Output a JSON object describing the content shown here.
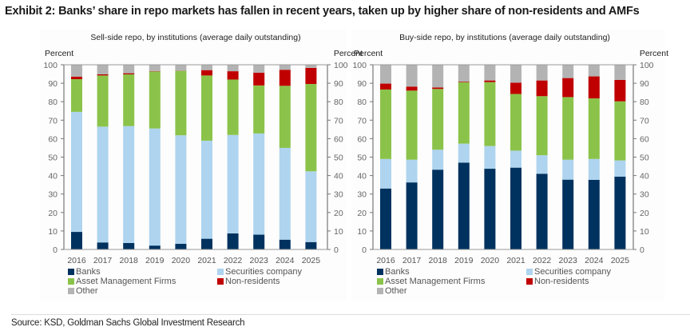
{
  "title": "Exhibit 2: Banks’ share in repo markets has fallen in recent years, taken up by higher share of non-residents and AMFs",
  "source": "Source: KSD, Goldman Sachs Global Investment Research",
  "colors": {
    "Banks": "#00325f",
    "Securities company": "#aed4ef",
    "Asset Management Firms": "#8bc34a",
    "Non-residents": "#c00000",
    "Other": "#b3b3b3"
  },
  "chart_data": [
    {
      "type": "bar",
      "stacked": true,
      "title": "Sell-side repo, by institutions (average daily outstanding)",
      "ylabel_left": "Percent",
      "ylabel_right": "Percent",
      "ylim": [
        0,
        100
      ],
      "yticks": [
        0,
        10,
        20,
        30,
        40,
        50,
        60,
        70,
        80,
        90,
        100
      ],
      "grid": false,
      "legend_position": "bottom",
      "categories": [
        "2016",
        "2017",
        "2018",
        "2019",
        "2020",
        "2021",
        "2022",
        "2023",
        "2024",
        "2025"
      ],
      "series": [
        {
          "name": "Banks",
          "values": [
            9.5,
            3.8,
            3.5,
            2.1,
            3.1,
            5.8,
            8.7,
            8.0,
            5.3,
            4.0
          ]
        },
        {
          "name": "Securities company",
          "values": [
            65.0,
            62.7,
            63.3,
            63.4,
            58.7,
            53.1,
            53.3,
            54.8,
            49.7,
            38.3
          ]
        },
        {
          "name": "Asset Management Firms",
          "values": [
            17.7,
            27.7,
            28.0,
            30.9,
            34.9,
            35.3,
            30.0,
            26.0,
            33.6,
            47.3
          ]
        },
        {
          "name": "Non-residents",
          "values": [
            1.4,
            0.6,
            0.6,
            0.2,
            0.1,
            2.9,
            4.5,
            6.9,
            8.7,
            8.7
          ]
        },
        {
          "name": "Other",
          "values": [
            6.4,
            5.2,
            4.6,
            3.4,
            3.2,
            2.9,
            3.5,
            4.3,
            2.7,
            1.7
          ]
        }
      ]
    },
    {
      "type": "bar",
      "stacked": true,
      "title": "Buy-side repo, by institutions (average daily outstanding)",
      "ylabel_left": "Percent",
      "ylabel_right": "Percent",
      "ylim": [
        0,
        100
      ],
      "yticks": [
        0,
        10,
        20,
        30,
        40,
        50,
        60,
        70,
        80,
        90,
        100
      ],
      "grid": false,
      "legend_position": "bottom",
      "categories": [
        "2016",
        "2017",
        "2018",
        "2019",
        "2020",
        "2021",
        "2022",
        "2023",
        "2024",
        "2025"
      ],
      "series": [
        {
          "name": "Banks",
          "values": [
            33.0,
            36.3,
            43.2,
            47.0,
            43.7,
            44.3,
            41.0,
            37.8,
            37.7,
            39.4
          ]
        },
        {
          "name": "Securities company",
          "values": [
            16.0,
            12.3,
            10.8,
            10.3,
            12.3,
            9.2,
            10.0,
            10.8,
            11.3,
            8.8
          ]
        },
        {
          "name": "Asset Management Firms",
          "values": [
            37.6,
            37.4,
            32.9,
            33.3,
            34.6,
            30.7,
            32.0,
            33.9,
            32.8,
            32.0
          ]
        },
        {
          "name": "Non-residents",
          "values": [
            3.2,
            2.2,
            0.8,
            0.3,
            0.9,
            6.1,
            8.5,
            10.3,
            11.9,
            11.6
          ]
        },
        {
          "name": "Other",
          "values": [
            10.2,
            11.8,
            12.3,
            9.1,
            8.5,
            9.7,
            8.5,
            7.2,
            6.3,
            8.2
          ]
        }
      ]
    }
  ],
  "legend": {
    "items": [
      {
        "label": "Banks",
        "icon": "square-swatch"
      },
      {
        "label": "Securities company",
        "icon": "square-swatch"
      },
      {
        "label": "Asset Management Firms",
        "icon": "square-swatch"
      },
      {
        "label": "Non-residents",
        "icon": "square-swatch"
      },
      {
        "label": "Other",
        "icon": "square-swatch"
      }
    ]
  }
}
